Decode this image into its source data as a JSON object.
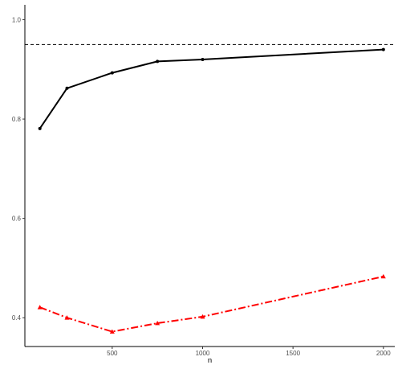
{
  "chart_data": {
    "type": "line",
    "title": "",
    "xlabel": "n",
    "ylabel": "",
    "xlim": [
      17,
      2063
    ],
    "ylim": [
      0.342,
      1.03
    ],
    "x_ticks": [
      500,
      1000,
      1500,
      2000
    ],
    "x_tick_labels": [
      "500",
      "1000",
      "1500",
      "2000"
    ],
    "y_ticks": [
      0.4,
      0.6,
      0.8,
      1.0
    ],
    "y_tick_labels": [
      "0.4",
      "0.6",
      "0.8",
      "1.0"
    ],
    "grid": false,
    "legend": "none",
    "reference_line": {
      "y": 0.95,
      "style": "dashed",
      "color": "#000000"
    },
    "series": [
      {
        "x": [
          100,
          250,
          500,
          750,
          1000,
          2000
        ],
        "values": [
          0.781,
          0.862,
          0.893,
          0.916,
          0.92,
          0.94
        ],
        "color": "#000000",
        "line_style": "solid",
        "marker": "circle"
      },
      {
        "x": [
          100,
          250,
          500,
          750,
          1000,
          2000
        ],
        "values": [
          0.421,
          0.4,
          0.372,
          0.389,
          0.402,
          0.483
        ],
        "color": "#ff0000",
        "line_style": "dashdot",
        "marker": "triangle"
      }
    ]
  }
}
